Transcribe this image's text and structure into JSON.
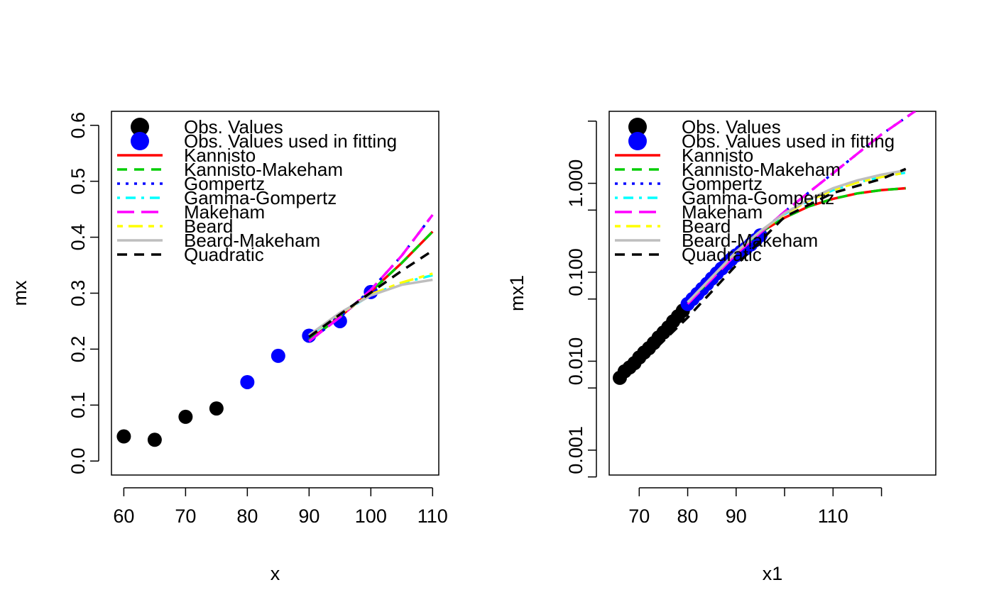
{
  "legend": {
    "entries": [
      {
        "label": "Obs. Values",
        "symbol": "point",
        "color": "#000000"
      },
      {
        "label": "Obs. Values used in fitting",
        "symbol": "point",
        "color": "#0000FF"
      },
      {
        "label": "Kannisto",
        "symbol": "line",
        "color": "#FF0000",
        "dash": "solid"
      },
      {
        "label": "Kannisto-Makeham",
        "symbol": "line",
        "color": "#00CD00",
        "dash": "dashed"
      },
      {
        "label": "Gompertz",
        "symbol": "line",
        "color": "#0000FF",
        "dash": "dotted"
      },
      {
        "label": "Gamma-Gompertz",
        "symbol": "line",
        "color": "#00FFFF",
        "dash": "dotdash"
      },
      {
        "label": "Makeham",
        "symbol": "line",
        "color": "#FF00FF",
        "dash": "longdash"
      },
      {
        "label": "Beard",
        "symbol": "line",
        "color": "#FFFF00",
        "dash": "twodash"
      },
      {
        "label": "Beard-Makeham",
        "symbol": "line",
        "color": "#BEBEBE",
        "dash": "solid"
      },
      {
        "label": "Quadratic",
        "symbol": "line",
        "color": "#000000",
        "dash": "dashed"
      }
    ],
    "placement": "top-left"
  },
  "chart_data": [
    {
      "type": "scatter",
      "xlabel": "x",
      "ylabel": "mx",
      "xlim": [
        58,
        111
      ],
      "ylim": [
        -0.025,
        0.625
      ],
      "y_scale": "linear",
      "x_ticks": [
        60,
        70,
        80,
        90,
        100,
        110
      ],
      "x_tick_labels": [
        "60",
        "70",
        "80",
        "90",
        "100",
        "110"
      ],
      "y_ticks": [
        0.0,
        0.1,
        0.2,
        0.3,
        0.4,
        0.5,
        0.6
      ],
      "y_tick_labels": [
        "0.0",
        "0.1",
        "0.2",
        "0.3",
        "0.4",
        "0.5",
        "0.6"
      ],
      "grid": false,
      "points": [
        {
          "name": "Obs. Values",
          "color": "#000000",
          "x": [
            60,
            65,
            70,
            75
          ],
          "y": [
            0.044,
            0.038,
            0.079,
            0.094
          ]
        },
        {
          "name": "Obs. Values used in fitting",
          "color": "#0000FF",
          "x": [
            80,
            85,
            90,
            95,
            100
          ],
          "y": [
            0.141,
            0.188,
            0.224,
            0.25,
            0.302
          ]
        }
      ],
      "series": [
        {
          "name": "Kannisto",
          "color": "#FF0000",
          "dash": "solid",
          "x": [
            90,
            95,
            100,
            105,
            110
          ],
          "y": [
            0.216,
            0.258,
            0.303,
            0.354,
            0.41
          ]
        },
        {
          "name": "Kannisto-Makeham",
          "color": "#00CD00",
          "dash": "dashed",
          "x": [
            90,
            95,
            100,
            105,
            110
          ],
          "y": [
            0.216,
            0.258,
            0.303,
            0.354,
            0.41
          ]
        },
        {
          "name": "Gompertz",
          "color": "#0000FF",
          "dash": "dotted",
          "x": [
            90,
            95,
            100,
            105,
            110
          ],
          "y": [
            0.214,
            0.257,
            0.306,
            0.367,
            0.44
          ]
        },
        {
          "name": "Gamma-Gompertz",
          "color": "#00FFFF",
          "dash": "dotdash",
          "x": [
            90,
            95,
            100,
            105,
            110
          ],
          "y": [
            0.224,
            0.262,
            0.297,
            0.318,
            0.332
          ]
        },
        {
          "name": "Makeham",
          "color": "#FF00FF",
          "dash": "longdash",
          "x": [
            90,
            95,
            100,
            105,
            110
          ],
          "y": [
            0.214,
            0.257,
            0.306,
            0.367,
            0.44
          ]
        },
        {
          "name": "Beard",
          "color": "#FFFF00",
          "dash": "twodash",
          "x": [
            90,
            95,
            100,
            105,
            110
          ],
          "y": [
            0.225,
            0.263,
            0.298,
            0.319,
            0.335
          ]
        },
        {
          "name": "Beard-Makeham",
          "color": "#BEBEBE",
          "dash": "solid",
          "x": [
            90,
            95,
            100,
            105,
            110
          ],
          "y": [
            0.225,
            0.265,
            0.296,
            0.315,
            0.324
          ]
        },
        {
          "name": "Quadratic",
          "color": "#000000",
          "dash": "dashed",
          "x": [
            90,
            95,
            100,
            105,
            110
          ],
          "y": [
            0.222,
            0.262,
            0.301,
            0.34,
            0.376
          ]
        }
      ]
    },
    {
      "type": "scatter",
      "xlabel": "x1",
      "ylabel": "mx1",
      "xlim": [
        63.8,
        131.2
      ],
      "ylim": [
        0.000525,
        6.45
      ],
      "y_scale": "log",
      "x_ticks": [
        70,
        80,
        90,
        100,
        110,
        120
      ],
      "x_tick_labels": [
        "70",
        "80",
        "90",
        "",
        "110",
        ""
      ],
      "y_ticks": [
        0.0005,
        0.001,
        0.005,
        0.01,
        0.05,
        0.1,
        0.5,
        1.0,
        5.0
      ],
      "y_tick_labels": [
        "",
        "0.001",
        "",
        "0.010",
        "",
        "0.100",
        "",
        "1.000",
        ""
      ],
      "grid": false,
      "points": [
        {
          "name": "Obs. Values",
          "color": "#000000",
          "x": [
            66,
            67,
            68,
            69,
            70,
            71,
            72,
            73,
            74,
            75,
            76,
            77,
            78,
            79
          ],
          "y": [
            0.0065,
            0.0077,
            0.0085,
            0.0095,
            0.011,
            0.0125,
            0.014,
            0.016,
            0.0185,
            0.021,
            0.024,
            0.028,
            0.032,
            0.037
          ]
        },
        {
          "name": "Obs. Values used in fitting",
          "color": "#0000FF",
          "x": [
            80,
            81,
            82,
            83,
            84,
            85,
            86,
            87,
            88,
            89,
            90,
            91,
            92,
            93,
            94,
            95
          ],
          "y": [
            0.044,
            0.05,
            0.057,
            0.065,
            0.074,
            0.085,
            0.097,
            0.11,
            0.125,
            0.14,
            0.155,
            0.17,
            0.185,
            0.205,
            0.23,
            0.26
          ]
        }
      ],
      "series": [
        {
          "name": "Kannisto",
          "color": "#FF0000",
          "dash": "solid",
          "x": [
            80,
            90,
            95,
            100,
            105,
            110,
            115,
            120,
            125
          ],
          "y": [
            0.044,
            0.17,
            0.28,
            0.41,
            0.55,
            0.67,
            0.77,
            0.84,
            0.88
          ]
        },
        {
          "name": "Kannisto-Makeham",
          "color": "#00CD00",
          "dash": "dashed",
          "x": [
            80,
            90,
            95,
            100,
            105,
            110,
            115,
            120,
            125
          ],
          "y": [
            0.044,
            0.17,
            0.28,
            0.41,
            0.55,
            0.67,
            0.77,
            0.84,
            0.88
          ]
        },
        {
          "name": "Gompertz",
          "color": "#0000FF",
          "dash": "dotted",
          "x": [
            80,
            90,
            100,
            110,
            120,
            127
          ],
          "y": [
            0.044,
            0.16,
            0.48,
            1.3,
            3.55,
            6.5
          ]
        },
        {
          "name": "Gamma-Gompertz",
          "color": "#00FFFF",
          "dash": "dotdash",
          "x": [
            80,
            90,
            95,
            100,
            105,
            110,
            115,
            120,
            125
          ],
          "y": [
            0.046,
            0.168,
            0.29,
            0.45,
            0.64,
            0.84,
            1.02,
            1.18,
            1.32
          ]
        },
        {
          "name": "Makeham",
          "color": "#FF00FF",
          "dash": "longdash",
          "x": [
            80,
            90,
            100,
            110,
            120,
            127
          ],
          "y": [
            0.044,
            0.16,
            0.48,
            1.3,
            3.55,
            6.5
          ]
        },
        {
          "name": "Beard",
          "color": "#FFFF00",
          "dash": "twodash",
          "x": [
            80,
            90,
            95,
            100,
            105,
            110,
            115,
            120,
            125
          ],
          "y": [
            0.046,
            0.168,
            0.29,
            0.45,
            0.64,
            0.84,
            1.02,
            1.18,
            1.32
          ]
        },
        {
          "name": "Beard-Makeham",
          "color": "#BEBEBE",
          "dash": "solid",
          "x": [
            80,
            90,
            95,
            100,
            105,
            110,
            115,
            120,
            125
          ],
          "y": [
            0.046,
            0.17,
            0.29,
            0.46,
            0.66,
            0.88,
            1.08,
            1.25,
            1.4
          ]
        },
        {
          "name": "Quadratic",
          "color": "#000000",
          "dash": "dashed",
          "x": [
            66,
            70,
            80,
            90,
            100,
            110,
            120,
            125
          ],
          "y": [
            0.006,
            0.0092,
            0.031,
            0.12,
            0.42,
            0.78,
            1.12,
            1.45
          ]
        }
      ]
    }
  ]
}
